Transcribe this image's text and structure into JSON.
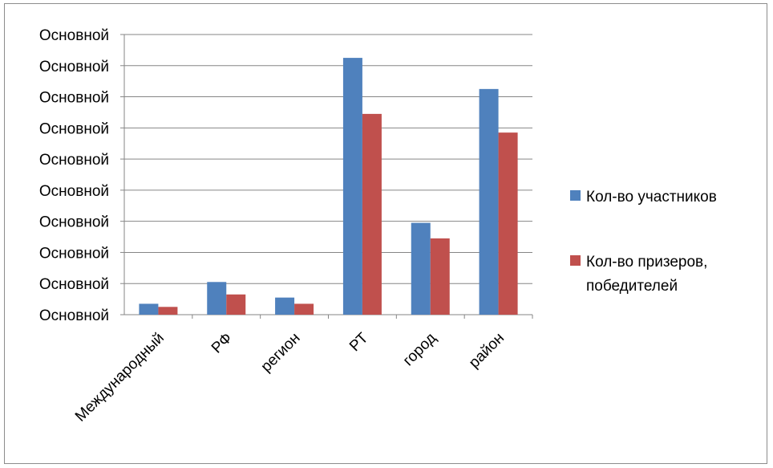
{
  "chart_data": {
    "type": "bar",
    "title": "",
    "xlabel": "",
    "ylabel": "",
    "categories": [
      "Международный",
      "РФ",
      "регион",
      "РТ",
      "город",
      "район"
    ],
    "y_tick_labels": [
      "Основной",
      "Основной",
      "Основной",
      "Основной",
      "Основной",
      "Основной",
      "Основной",
      "Основной",
      "Основной",
      "Основной"
    ],
    "ylim": [
      0,
      9
    ],
    "grid": true,
    "legend_position": "right",
    "series": [
      {
        "name": "Кол-во участников",
        "color": "#4f81bd",
        "values": [
          0.35,
          1.05,
          0.55,
          8.25,
          2.95,
          7.25
        ]
      },
      {
        "name": "Кол-во призеров,\nпобедителей",
        "color": "#c0504d",
        "values": [
          0.25,
          0.65,
          0.35,
          6.45,
          2.45,
          5.85
        ]
      }
    ],
    "legend_labels": {
      "series1": "Кол-во участников",
      "series2_line1": "Кол-во призеров,",
      "series2_line2": "победителей"
    }
  }
}
